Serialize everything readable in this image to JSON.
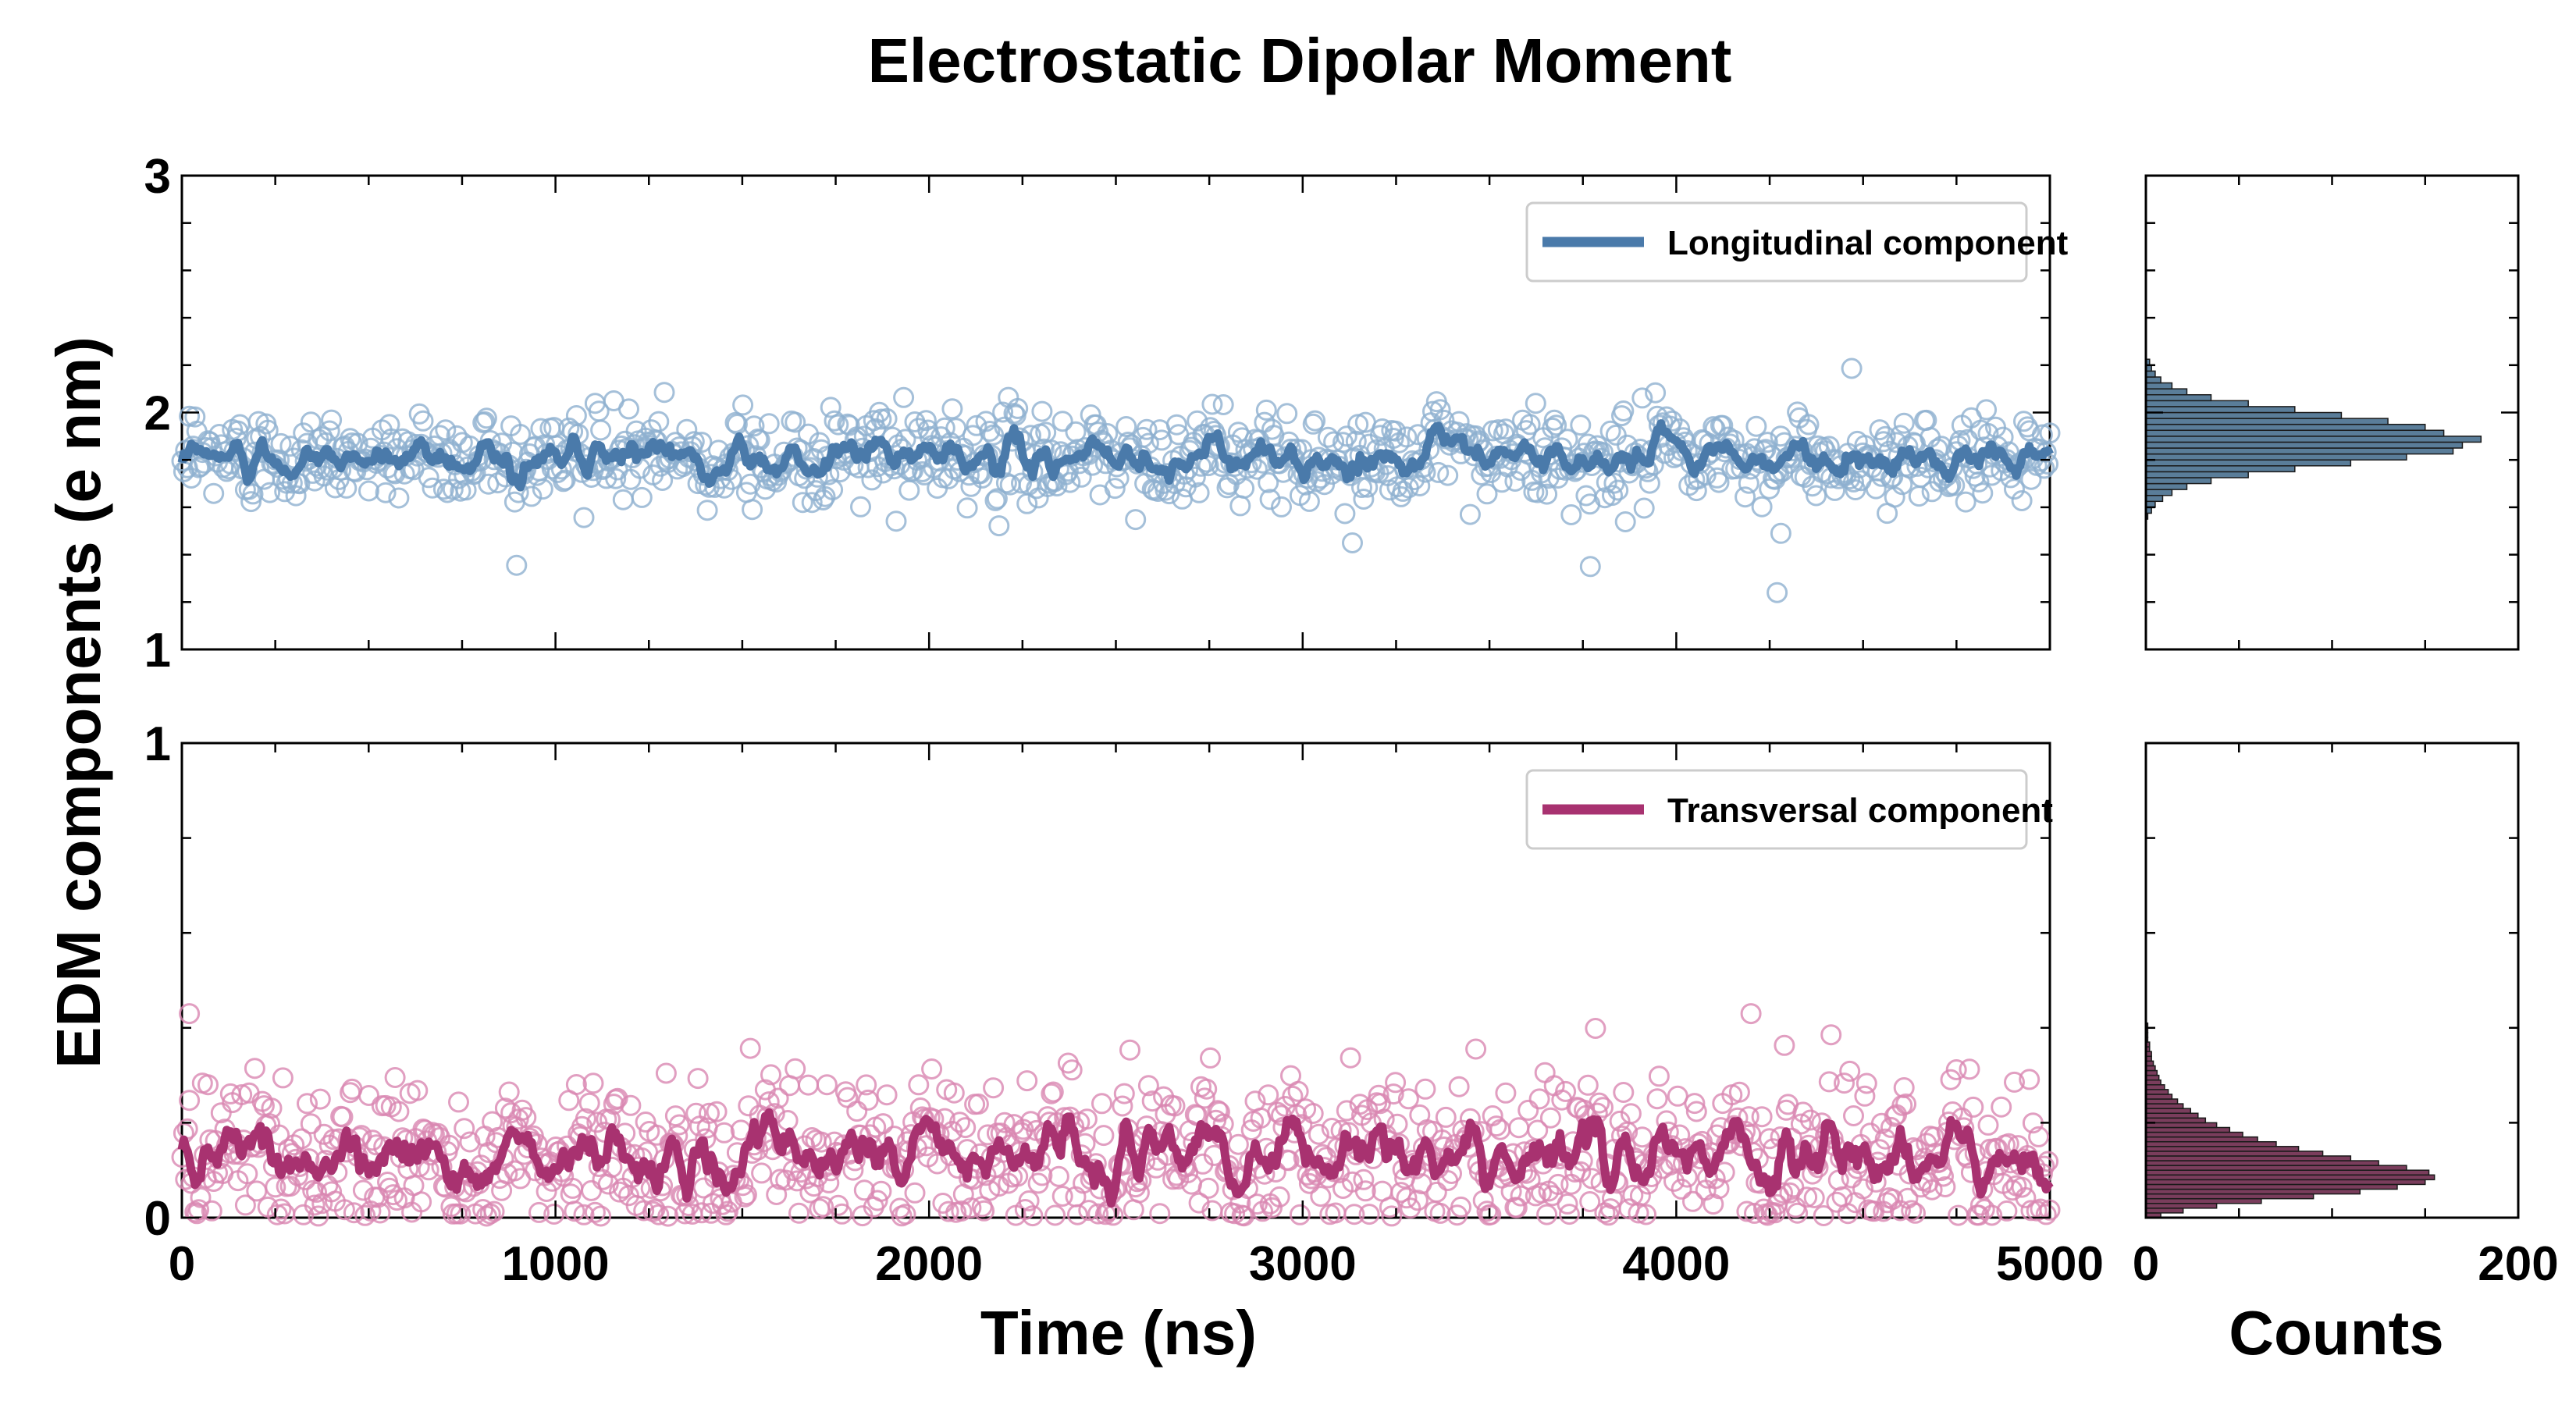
{
  "chart_data": [
    {
      "type": "scatter",
      "panel": "top-time-series",
      "title": "Electrostatic Dipolar Moment",
      "xlabel": "Time (ns)",
      "ylabel": "EDM components (e nm)",
      "xlim": [
        0,
        5000
      ],
      "ylim": [
        1,
        3
      ],
      "xticks": [
        0,
        1000,
        2000,
        3000,
        4000,
        5000
      ],
      "xtick_labels": [
        "0",
        "1000",
        "2000",
        "3000",
        "4000",
        "5000"
      ],
      "yticks": [
        1,
        2,
        3
      ],
      "ytick_labels": [
        "1",
        "2",
        "3"
      ],
      "legend_position": "top-right",
      "series": [
        {
          "name": "Longitudinal component",
          "kind": "scatter+moving-average",
          "color": "#4a7aaa",
          "point_color": "#8fb0cf",
          "n_points": 1000,
          "mean": 1.81,
          "std": 0.095,
          "smooth_std": 0.03,
          "outliers": [
            {
              "x": 3770,
              "y": 1.35
            },
            {
              "x": 4270,
              "y": 1.24
            },
            {
              "x": 4280,
              "y": 1.49
            }
          ]
        }
      ],
      "grid": false
    },
    {
      "type": "scatter",
      "panel": "bottom-time-series",
      "xlabel": "Time (ns)",
      "ylabel": "EDM components (e nm)",
      "xlim": [
        0,
        5000
      ],
      "ylim": [
        0,
        1
      ],
      "xticks": [
        0,
        1000,
        2000,
        3000,
        4000,
        5000
      ],
      "xtick_labels": [
        "0",
        "1000",
        "2000",
        "3000",
        "4000",
        "5000"
      ],
      "yticks": [
        0,
        1
      ],
      "ytick_labels": [
        "0",
        "1"
      ],
      "legend_position": "top-right",
      "series": [
        {
          "name": "Transversal component",
          "kind": "scatter+moving-average",
          "color": "#a83270",
          "point_color": "#d987b2",
          "n_points": 1000,
          "mean": 0.135,
          "std": 0.085,
          "smooth_std": 0.025,
          "outliers": [
            {
              "x": 20,
              "y": 0.43
            },
            {
              "x": 4200,
              "y": 0.43
            }
          ]
        }
      ],
      "grid": false
    },
    {
      "type": "bar",
      "orientation": "horizontal",
      "panel": "top-histogram",
      "xlabel": "Counts",
      "xlim": [
        0,
        200
      ],
      "ylim": [
        1,
        3
      ],
      "bin_width": 0.025,
      "bin_edges_start": 1.55,
      "values": [
        1,
        3,
        5,
        9,
        14,
        22,
        35,
        55,
        80,
        110,
        140,
        165,
        170,
        180,
        160,
        150,
        130,
        105,
        80,
        55,
        35,
        22,
        14,
        8,
        5,
        3,
        2
      ],
      "color": "#5a7d99",
      "edge_color": "#1a1a1a"
    },
    {
      "type": "bar",
      "orientation": "horizontal",
      "panel": "bottom-histogram",
      "xlabel": "Counts",
      "xlim": [
        0,
        200
      ],
      "xticks": [
        0,
        200
      ],
      "xtick_labels": [
        "0",
        "200"
      ],
      "ylim": [
        0,
        1
      ],
      "bin_width": 0.01,
      "bin_edges_start": 0.0,
      "values": [
        8,
        20,
        38,
        62,
        90,
        115,
        135,
        150,
        155,
        152,
        140,
        125,
        110,
        95,
        82,
        70,
        60,
        52,
        45,
        38,
        32,
        28,
        24,
        20,
        17,
        14,
        12,
        10,
        8,
        7,
        6,
        5,
        4,
        3,
        3,
        2,
        2,
        1,
        1,
        1,
        1
      ],
      "color": "#7a3d5c",
      "edge_color": "#1a1a1a"
    }
  ]
}
